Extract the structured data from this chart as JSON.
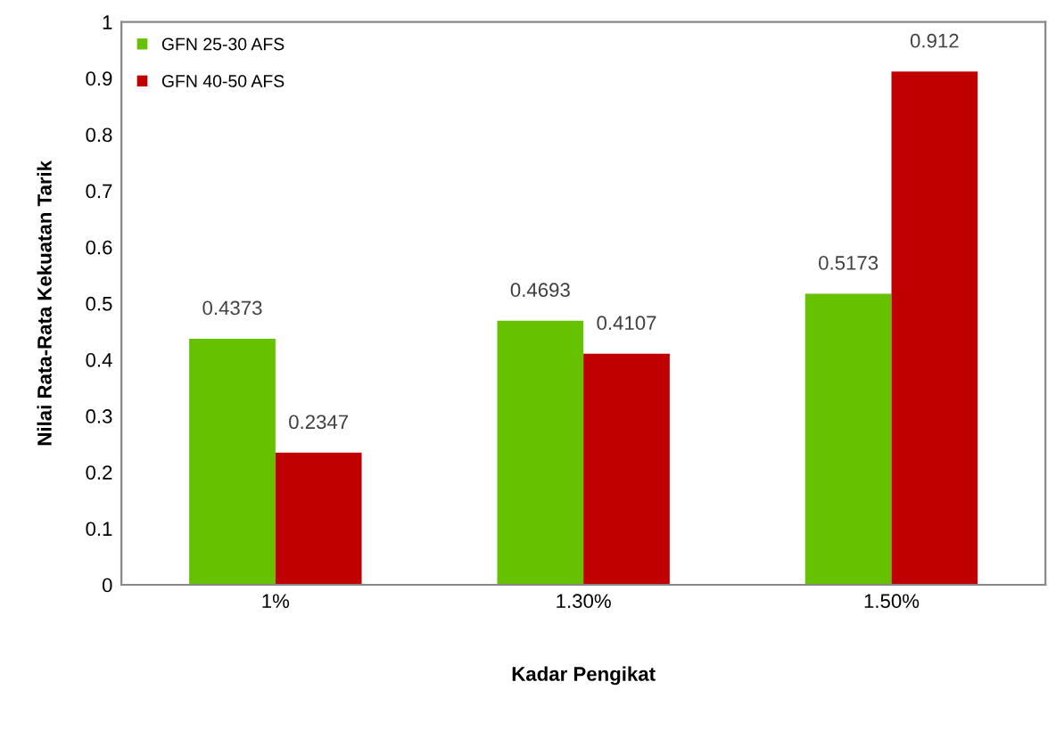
{
  "chart_data": {
    "type": "bar",
    "xlabel": "Kadar Pengikat",
    "ylabel": "Nilai Rata-Rata Kekuatan Tarik",
    "categories": [
      "1%",
      "1.30%",
      "1.50%"
    ],
    "series": [
      {
        "name": "GFN 25-30 AFS",
        "color": "#66c100",
        "values": [
          0.4373,
          0.4693,
          0.5173
        ]
      },
      {
        "name": "GFN 40-50 AFS",
        "color": "#c00000",
        "values": [
          0.2347,
          0.4107,
          0.912
        ]
      }
    ],
    "ylim": [
      0,
      1
    ],
    "yticks": [
      0,
      0.1,
      0.2,
      0.3,
      0.4,
      0.5,
      0.6,
      0.7,
      0.8,
      0.9,
      1
    ],
    "data_labels": true,
    "legend": "top left",
    "grid": false
  }
}
